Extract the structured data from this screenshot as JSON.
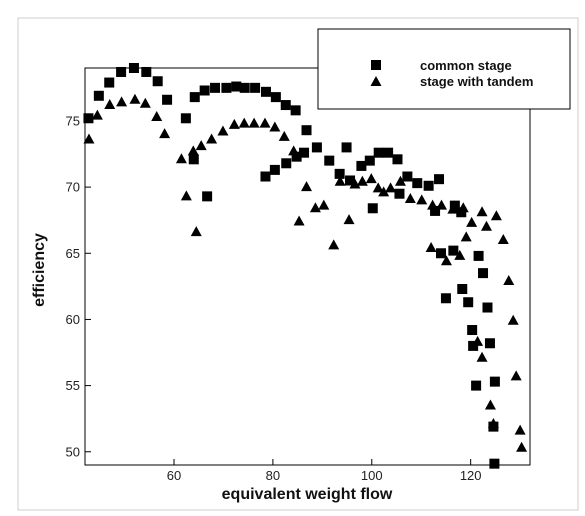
{
  "chart_data": {
    "type": "scatter",
    "title": "",
    "xlabel": "equivalent weight flow",
    "ylabel": "efficiency",
    "xlim": [
      42,
      132
    ],
    "ylim": [
      49,
      79
    ],
    "x_ticks": [
      60,
      80,
      100,
      120
    ],
    "y_ticks": [
      50,
      55,
      60,
      65,
      70,
      75
    ],
    "grid": false,
    "legend_position": "top-right",
    "series": [
      {
        "name": "common stage",
        "marker": "square",
        "color": "#000000",
        "points": [
          [
            42.7,
            75.2
          ],
          [
            44.8,
            76.9
          ],
          [
            46.9,
            77.9
          ],
          [
            49.3,
            78.7
          ],
          [
            51.9,
            79.0
          ],
          [
            54.4,
            78.7
          ],
          [
            56.7,
            78.0
          ],
          [
            58.6,
            76.6
          ],
          [
            62.4,
            75.2
          ],
          [
            64.2,
            76.8
          ],
          [
            66.2,
            77.3
          ],
          [
            68.3,
            77.5
          ],
          [
            70.6,
            77.5
          ],
          [
            72.6,
            77.6
          ],
          [
            74.3,
            77.5
          ],
          [
            76.4,
            77.5
          ],
          [
            78.6,
            77.2
          ],
          [
            80.6,
            76.8
          ],
          [
            82.6,
            76.2
          ],
          [
            84.6,
            75.8
          ],
          [
            86.8,
            74.3
          ],
          [
            88.9,
            73.0
          ],
          [
            91.4,
            72.0
          ],
          [
            93.5,
            71.0
          ],
          [
            95.6,
            70.5
          ],
          [
            64.0,
            72.1
          ],
          [
            66.7,
            69.3
          ],
          [
            78.5,
            70.8
          ],
          [
            80.4,
            71.3
          ],
          [
            82.7,
            71.8
          ],
          [
            84.8,
            72.3
          ],
          [
            86.3,
            72.6
          ],
          [
            94.9,
            73.0
          ],
          [
            97.9,
            71.6
          ],
          [
            100.2,
            68.4
          ],
          [
            101.4,
            72.6
          ],
          [
            103.3,
            72.6
          ],
          [
            105.2,
            72.1
          ],
          [
            99.6,
            72.0
          ],
          [
            107.2,
            70.8
          ],
          [
            109.2,
            70.3
          ],
          [
            111.5,
            70.1
          ],
          [
            113.6,
            70.6
          ],
          [
            105.6,
            69.5
          ],
          [
            112.8,
            68.2
          ],
          [
            114.0,
            65.0
          ],
          [
            115.0,
            61.6
          ],
          [
            116.5,
            65.2
          ],
          [
            116.8,
            68.6
          ],
          [
            118.1,
            68.1
          ],
          [
            118.3,
            62.3
          ],
          [
            119.5,
            61.3
          ],
          [
            120.3,
            59.2
          ],
          [
            120.5,
            58.0
          ],
          [
            121.1,
            55.0
          ],
          [
            121.6,
            64.8
          ],
          [
            122.5,
            63.5
          ],
          [
            123.4,
            60.9
          ],
          [
            123.9,
            58.2
          ],
          [
            124.9,
            55.3
          ],
          [
            124.6,
            51.9
          ],
          [
            124.8,
            49.1
          ]
        ]
      },
      {
        "name": "stage with tandem",
        "marker": "triangle",
        "color": "#000000",
        "points": [
          [
            42.8,
            73.6
          ],
          [
            44.5,
            75.4
          ],
          [
            47.0,
            76.2
          ],
          [
            49.4,
            76.4
          ],
          [
            52.1,
            76.6
          ],
          [
            54.2,
            76.3
          ],
          [
            56.5,
            75.3
          ],
          [
            58.1,
            74.0
          ],
          [
            61.5,
            72.1
          ],
          [
            62.5,
            69.3
          ],
          [
            63.9,
            72.7
          ],
          [
            64.5,
            66.6
          ],
          [
            65.5,
            73.1
          ],
          [
            67.6,
            73.6
          ],
          [
            69.9,
            74.2
          ],
          [
            72.2,
            74.7
          ],
          [
            74.2,
            74.8
          ],
          [
            76.2,
            74.8
          ],
          [
            78.4,
            74.8
          ],
          [
            80.4,
            74.5
          ],
          [
            82.3,
            73.8
          ],
          [
            84.2,
            72.7
          ],
          [
            85.3,
            67.4
          ],
          [
            86.8,
            70.0
          ],
          [
            88.6,
            68.4
          ],
          [
            90.3,
            68.6
          ],
          [
            92.3,
            65.6
          ],
          [
            93.6,
            70.4
          ],
          [
            95.4,
            67.5
          ],
          [
            96.6,
            70.2
          ],
          [
            98.1,
            70.4
          ],
          [
            99.9,
            70.6
          ],
          [
            101.3,
            69.9
          ],
          [
            102.4,
            69.6
          ],
          [
            103.8,
            69.9
          ],
          [
            105.8,
            70.4
          ],
          [
            107.8,
            69.1
          ],
          [
            110.1,
            69.0
          ],
          [
            112.3,
            68.6
          ],
          [
            112.0,
            65.4
          ],
          [
            114.1,
            68.6
          ],
          [
            115.1,
            64.4
          ],
          [
            116.4,
            68.3
          ],
          [
            117.8,
            64.8
          ],
          [
            118.5,
            68.4
          ],
          [
            119.1,
            66.2
          ],
          [
            120.2,
            67.3
          ],
          [
            121.4,
            58.3
          ],
          [
            122.3,
            57.1
          ],
          [
            122.3,
            68.1
          ],
          [
            123.2,
            67.0
          ],
          [
            124.0,
            53.5
          ],
          [
            124.6,
            52.1
          ],
          [
            125.2,
            67.8
          ],
          [
            126.6,
            66.0
          ],
          [
            127.7,
            62.9
          ],
          [
            128.6,
            59.9
          ],
          [
            129.2,
            55.7
          ],
          [
            130.0,
            51.6
          ],
          [
            130.3,
            50.3
          ]
        ]
      }
    ]
  }
}
